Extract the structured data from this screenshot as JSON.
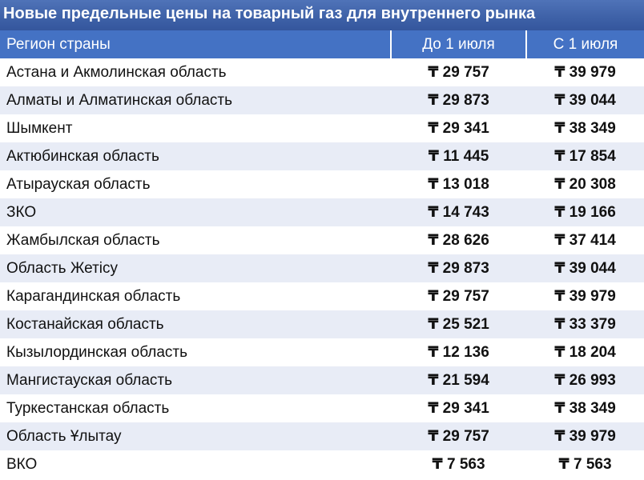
{
  "title": "Новые предельные цены на товарный газ для внутреннего рынка",
  "table": {
    "headers": {
      "region": "Регион страны",
      "before": "До 1 июля",
      "after": "С 1 июля"
    },
    "rows": [
      {
        "region": "Астана и Акмолинская область",
        "before": "₸ 29 757",
        "after": "₸ 39 979"
      },
      {
        "region": "Алматы и Алматинская область",
        "before": "₸ 29 873",
        "after": "₸ 39 044"
      },
      {
        "region": "Шымкент",
        "before": "₸ 29 341",
        "after": "₸ 38 349"
      },
      {
        "region": "Актюбинская область",
        "before": "₸ 11 445",
        "after": "₸ 17 854"
      },
      {
        "region": "Атырауская область",
        "before": "₸ 13 018",
        "after": "₸ 20 308"
      },
      {
        "region": "ЗКО",
        "before": "₸ 14 743",
        "after": "₸ 19 166"
      },
      {
        "region": "Жамбылская область",
        "before": "₸ 28 626",
        "after": "₸ 37 414"
      },
      {
        "region": "Область Жетісу",
        "before": "₸ 29 873",
        "after": "₸ 39 044"
      },
      {
        "region": "Карагандинская область",
        "before": "₸ 29 757",
        "after": "₸ 39 979"
      },
      {
        "region": "Костанайская область",
        "before": "₸ 25 521",
        "after": "₸ 33 379"
      },
      {
        "region": "Кызылординская область",
        "before": "₸ 12 136",
        "after": "₸ 18 204"
      },
      {
        "region": "Мангистауская область",
        "before": "₸ 21 594",
        "after": "₸ 26 993"
      },
      {
        "region": "Туркестанская область",
        "before": "₸ 29 341",
        "after": "₸ 38 349"
      },
      {
        "region": "Область Ұлытау",
        "before": "₸ 29 757",
        "after": "₸ 39 979"
      },
      {
        "region": "ВКО",
        "before": "₸ 7 563",
        "after": "₸ 7 563"
      }
    ]
  },
  "colors": {
    "title_bg": "#3f62a8",
    "header_bg": "#4472c4",
    "stripe_bg": "#e8ecf6"
  }
}
